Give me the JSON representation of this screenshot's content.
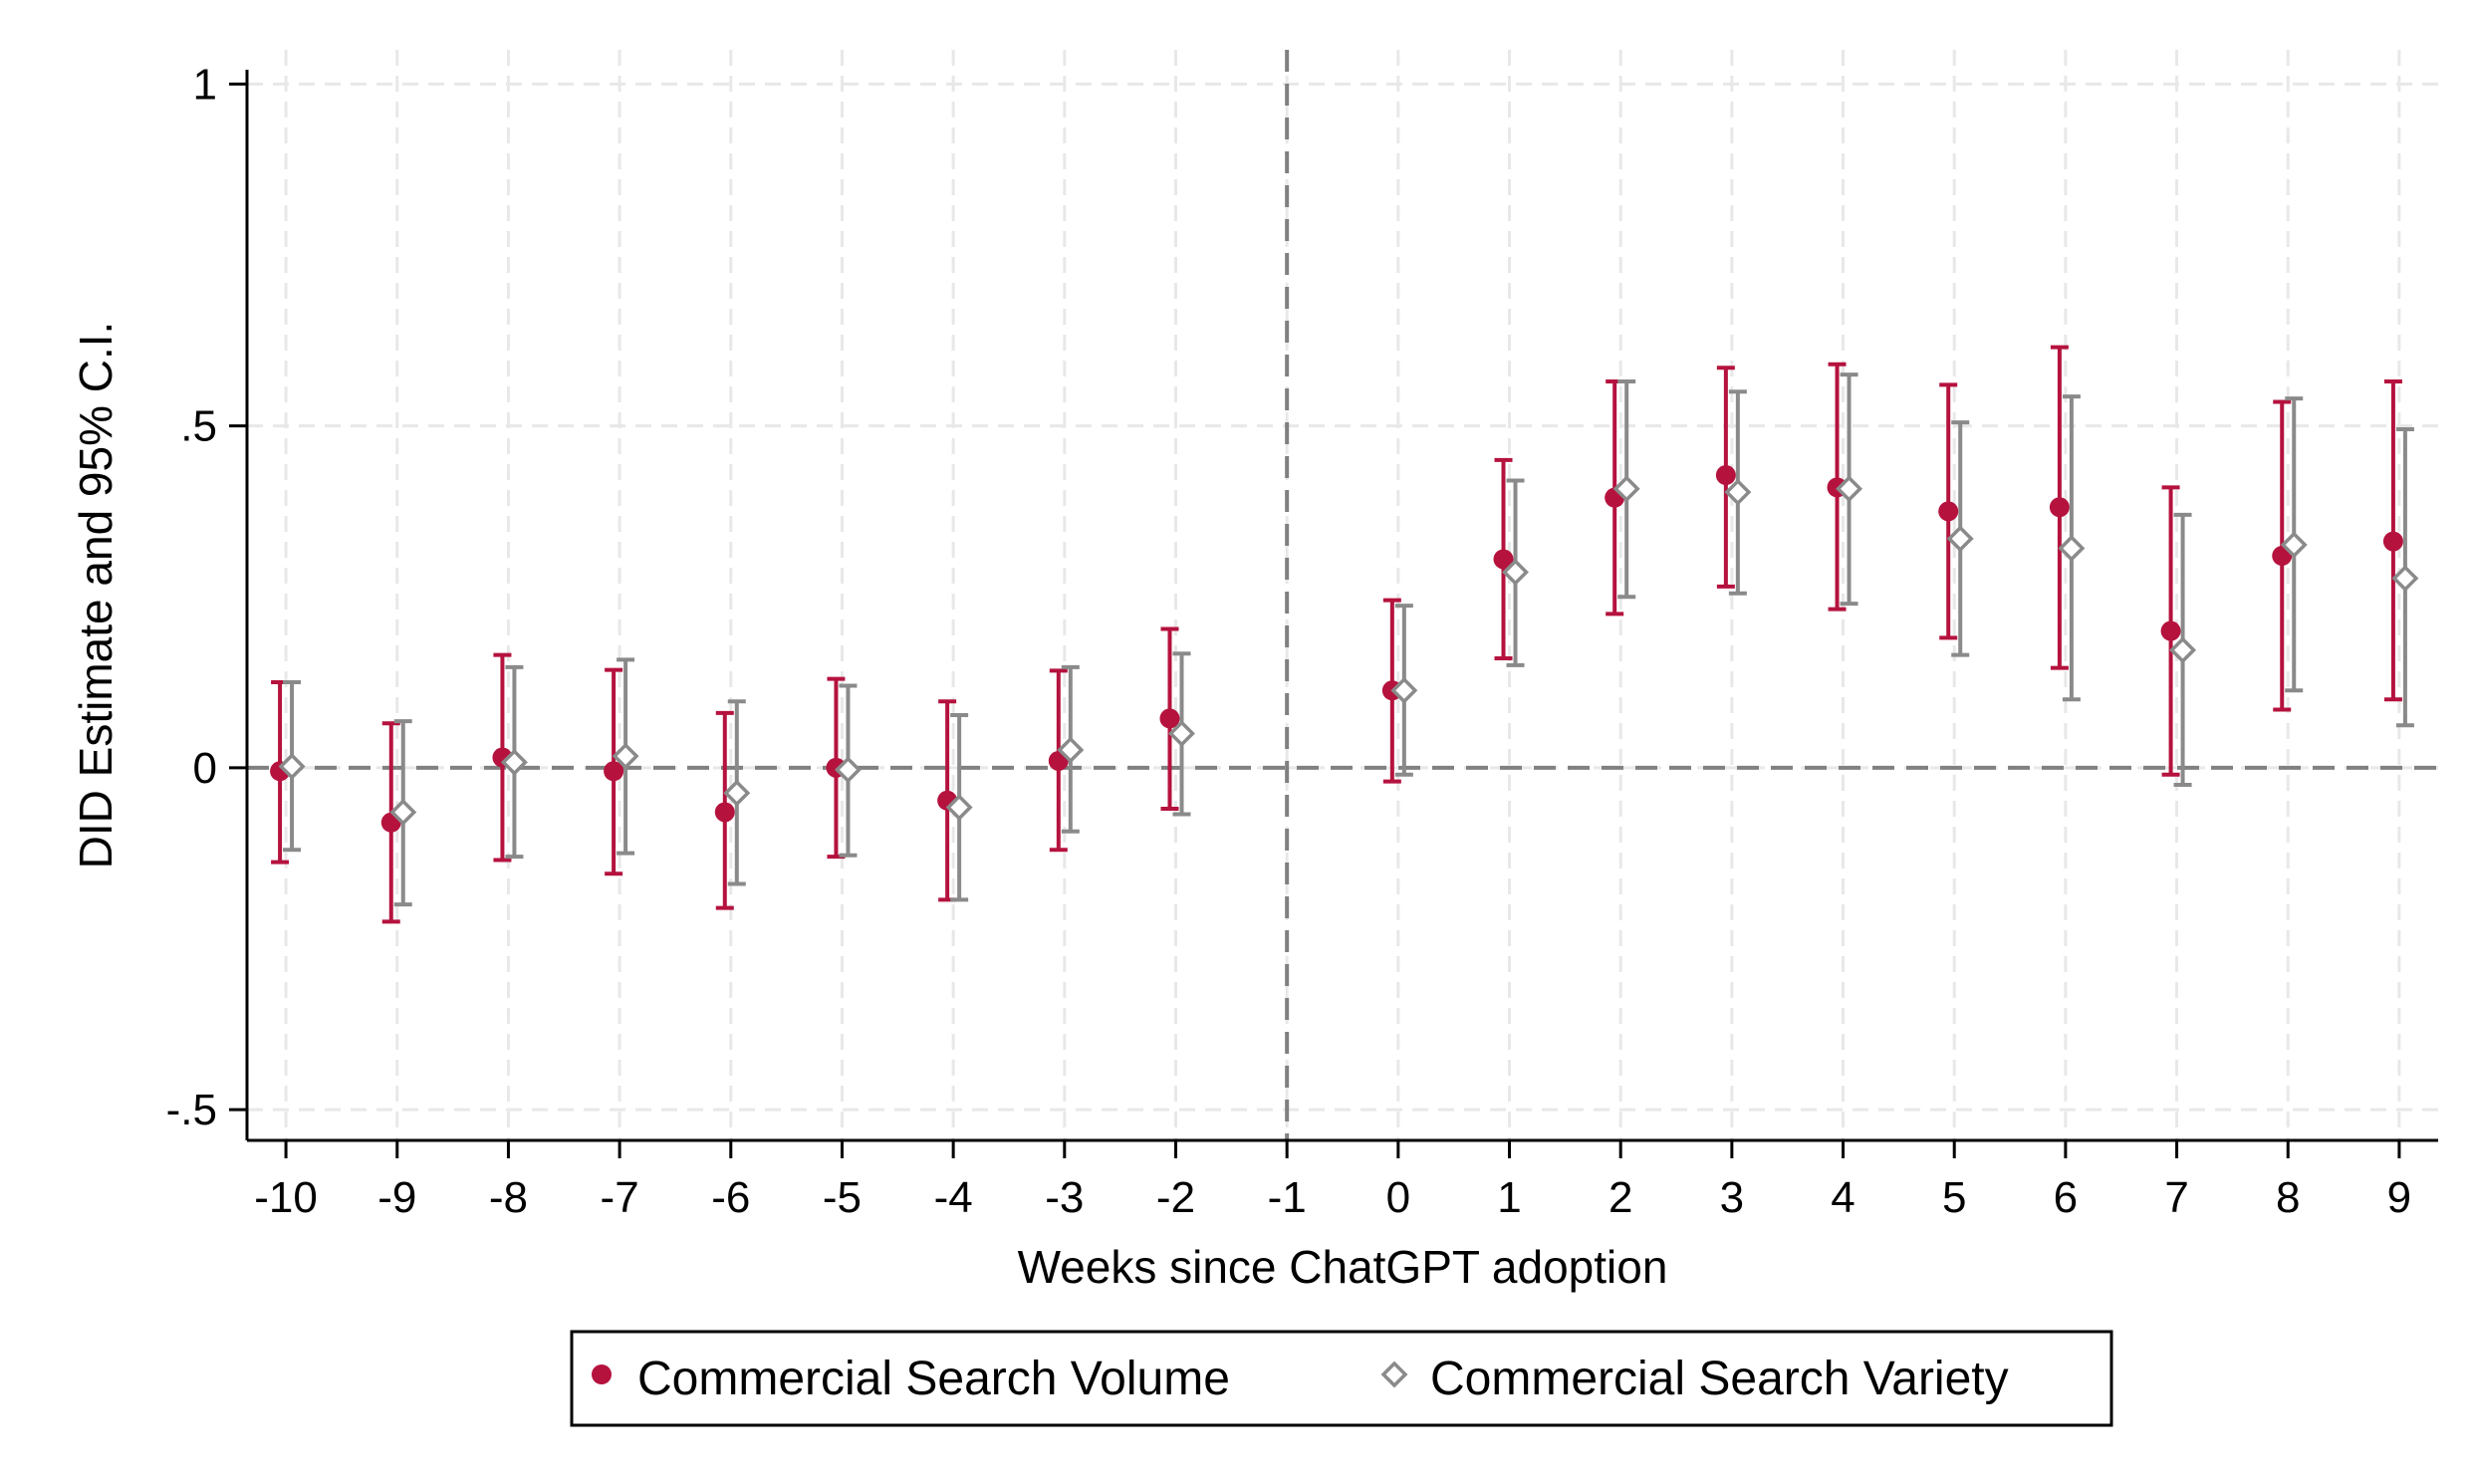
{
  "chart_data": {
    "type": "scatter",
    "title": "",
    "xlabel": "Weeks since ChatGPT adoption",
    "ylabel": "DID Estimate and 95% C.I.",
    "x": [
      -10,
      -9,
      -8,
      -7,
      -6,
      -5,
      -4,
      -3,
      -2,
      -1,
      0,
      1,
      2,
      3,
      4,
      5,
      6,
      7,
      8,
      9
    ],
    "xlim": [
      -10.35,
      9.35
    ],
    "ylim": [
      -0.545,
      1.05
    ],
    "yticks": [
      -0.5,
      0,
      0.5,
      1
    ],
    "ytick_labels": [
      "-.5",
      "0",
      ".5",
      "1"
    ],
    "xtick_labels": [
      "-10",
      "-9",
      "-8",
      "-7",
      "-6",
      "-5",
      "-4",
      "-3",
      "-2",
      "-1",
      "0",
      "1",
      "2",
      "3",
      "4",
      "5",
      "6",
      "7",
      "8",
      "9"
    ],
    "grid": true,
    "reference_lines": {
      "x": -1,
      "y": 0
    },
    "legend_position": "bottom",
    "series": [
      {
        "name": "Commercial Search Volume",
        "color": "#b5123e",
        "marker": "circle",
        "x": [
          -10,
          -9,
          -8,
          -7,
          -6,
          -5,
          -4,
          -3,
          -2,
          0,
          1,
          2,
          3,
          4,
          5,
          6,
          7,
          8,
          9
        ],
        "y": [
          -0.005,
          -0.08,
          0.015,
          -0.005,
          -0.065,
          0.0,
          -0.048,
          0.01,
          0.072,
          0.113,
          0.305,
          0.395,
          0.428,
          0.41,
          0.375,
          0.381,
          0.2,
          0.31,
          0.331
        ],
        "ci_low": [
          -0.138,
          -0.225,
          -0.135,
          -0.155,
          -0.205,
          -0.13,
          -0.193,
          -0.12,
          -0.06,
          -0.02,
          0.16,
          0.225,
          0.265,
          0.232,
          0.19,
          0.146,
          -0.01,
          0.085,
          0.1
        ],
        "ci_high": [
          0.125,
          0.065,
          0.165,
          0.143,
          0.08,
          0.13,
          0.097,
          0.142,
          0.203,
          0.245,
          0.45,
          0.565,
          0.585,
          0.59,
          0.56,
          0.615,
          0.41,
          0.535,
          0.565
        ]
      },
      {
        "name": "Commercial Search Variety",
        "color": "#8a8a8a",
        "marker": "diamond",
        "x": [
          -10,
          -9,
          -8,
          -7,
          -6,
          -5,
          -4,
          -3,
          -2,
          0,
          1,
          2,
          3,
          4,
          5,
          6,
          7,
          8,
          9
        ],
        "y": [
          0.002,
          -0.065,
          0.008,
          0.017,
          -0.037,
          -0.003,
          -0.058,
          0.026,
          0.05,
          0.113,
          0.286,
          0.408,
          0.403,
          0.408,
          0.335,
          0.321,
          0.172,
          0.326,
          0.277
        ],
        "ci_low": [
          -0.12,
          -0.2,
          -0.13,
          -0.125,
          -0.17,
          -0.128,
          -0.193,
          -0.093,
          -0.068,
          -0.01,
          0.15,
          0.25,
          0.255,
          0.24,
          0.165,
          0.1,
          -0.025,
          0.113,
          0.062
        ],
        "ci_high": [
          0.125,
          0.068,
          0.147,
          0.158,
          0.097,
          0.12,
          0.077,
          0.147,
          0.167,
          0.237,
          0.42,
          0.565,
          0.55,
          0.575,
          0.505,
          0.543,
          0.37,
          0.54,
          0.495
        ]
      }
    ]
  }
}
